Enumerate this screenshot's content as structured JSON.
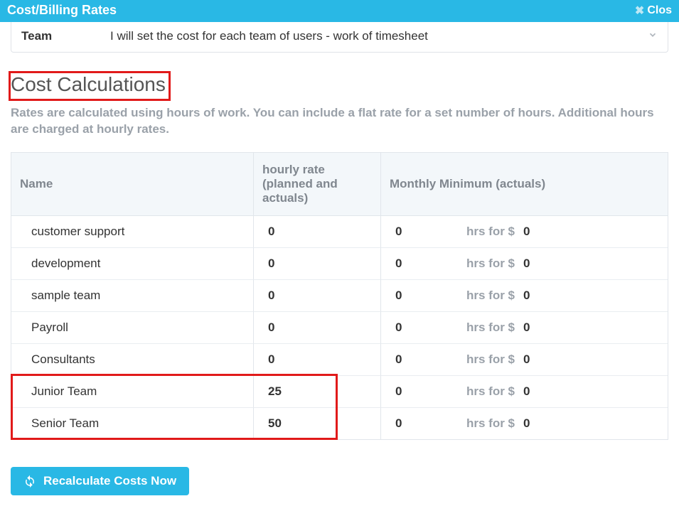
{
  "colors": {
    "primary": "#29b8e5",
    "highlight_border": "#e11a1a",
    "muted_text": "#9aa1a9",
    "header_bg": "#f3f7fa",
    "border": "#e1e6eb"
  },
  "titlebar": {
    "title": "Cost/Billing Rates",
    "close_label": "Clos"
  },
  "dropdown": {
    "label": "Team",
    "value": "I will set the cost for each team of users - work of timesheet"
  },
  "section": {
    "title": "Cost Calculations",
    "description": "Rates are calculated using hours of work. You can include a flat rate for a set number of hours. Additional hours are charged at hourly rates."
  },
  "table": {
    "headers": {
      "name": "Name",
      "rate": "hourly rate (planned and actuals)",
      "monthly": "Monthly Minimum (actuals)"
    },
    "hrs_for_label": "hrs for $",
    "rows": [
      {
        "name": "customer support",
        "rate": "0",
        "mm1": "0",
        "mm2": "0"
      },
      {
        "name": "development",
        "rate": "0",
        "mm1": "0",
        "mm2": "0"
      },
      {
        "name": "sample team",
        "rate": "0",
        "mm1": "0",
        "mm2": "0"
      },
      {
        "name": "Payroll",
        "rate": "0",
        "mm1": "0",
        "mm2": "0"
      },
      {
        "name": "Consultants",
        "rate": "0",
        "mm1": "0",
        "mm2": "0"
      },
      {
        "name": "Junior Team",
        "rate": "25",
        "mm1": "0",
        "mm2": "0"
      },
      {
        "name": "Senior Team",
        "rate": "50",
        "mm1": "0",
        "mm2": "0"
      }
    ]
  },
  "buttons": {
    "recalculate": "Recalculate Costs Now"
  },
  "highlight": {
    "rows_start_index": 5,
    "rows_end_index": 6,
    "cols": [
      "name",
      "rate"
    ]
  }
}
